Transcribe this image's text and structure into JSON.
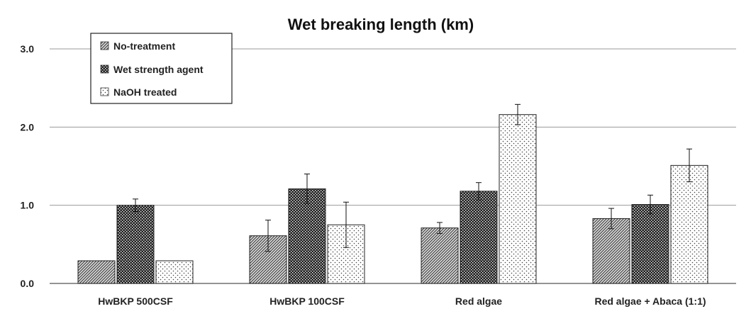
{
  "chart_data": {
    "type": "bar",
    "title": "Wet breaking length (km)",
    "xlabel": "",
    "ylabel": "",
    "ylim": [
      0,
      3.0
    ],
    "yticks": [
      0.0,
      1.0,
      2.0,
      3.0
    ],
    "ytick_labels": [
      "0.0",
      "1.0",
      "2.0",
      "3.0"
    ],
    "grid": true,
    "legend_position": "top-left",
    "categories": [
      "HwBKP 500CSF",
      "HwBKP 100CSF",
      "Red algae",
      "Red algae + Abaca (1:1)"
    ],
    "series": [
      {
        "name": "No-treatment",
        "pattern": "diagonal-hatch",
        "values": [
          0.29,
          0.61,
          0.71,
          0.83
        ],
        "errors": [
          0.0,
          0.2,
          0.07,
          0.13
        ]
      },
      {
        "name": "Wet strength agent",
        "pattern": "dense-dots",
        "values": [
          1.0,
          1.21,
          1.18,
          1.01
        ],
        "errors": [
          0.08,
          0.19,
          0.11,
          0.12
        ]
      },
      {
        "name": "NaOH treated",
        "pattern": "sparse-dots",
        "values": [
          0.29,
          0.75,
          2.16,
          1.51
        ],
        "errors": [
          0.0,
          0.29,
          0.13,
          0.21
        ]
      }
    ]
  }
}
